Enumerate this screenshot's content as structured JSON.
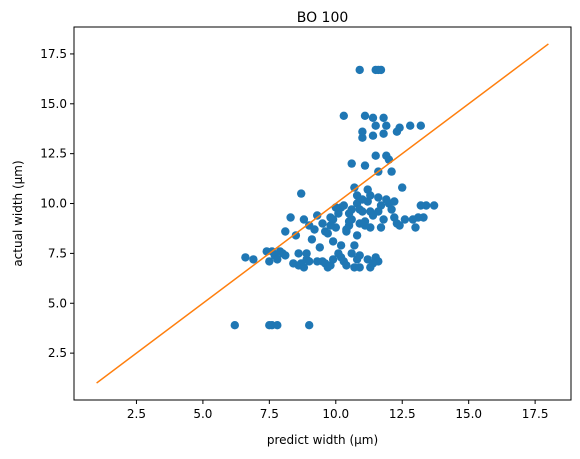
{
  "chart_data": {
    "type": "scatter",
    "title": "BO 100",
    "xlabel": "predict width (μm)",
    "ylabel": "actual width (μm)",
    "xlim": [
      0.15,
      18.85
    ],
    "ylim": [
      0.15,
      18.85
    ],
    "xticks": [
      "2.5",
      "5.0",
      "7.5",
      "10.0",
      "12.5",
      "15.0",
      "17.5"
    ],
    "yticks": [
      "2.5",
      "5.0",
      "7.5",
      "10.0",
      "12.5",
      "15.0",
      "17.5"
    ],
    "xtick_values": [
      2.5,
      5.0,
      7.5,
      10.0,
      12.5,
      15.0,
      17.5
    ],
    "ytick_values": [
      2.5,
      5.0,
      7.5,
      10.0,
      12.5,
      15.0,
      17.5
    ],
    "grid": false,
    "colors": {
      "points": "#1f77b4",
      "line": "#ff7f0e"
    },
    "reference_line": {
      "x": [
        1.0,
        18.0
      ],
      "y": [
        1.0,
        18.0
      ]
    },
    "series": [
      {
        "points": [
          [
            6.2,
            3.9
          ],
          [
            7.5,
            3.9
          ],
          [
            7.6,
            3.9
          ],
          [
            7.8,
            3.9
          ],
          [
            9.0,
            3.9
          ],
          [
            6.6,
            7.3
          ],
          [
            6.9,
            7.2
          ],
          [
            7.4,
            7.6
          ],
          [
            7.6,
            7.6
          ],
          [
            7.7,
            7.4
          ],
          [
            7.8,
            7.2
          ],
          [
            7.5,
            7.1
          ],
          [
            8.0,
            7.5
          ],
          [
            8.1,
            7.4
          ],
          [
            8.1,
            8.6
          ],
          [
            8.3,
            9.3
          ],
          [
            8.5,
            8.4
          ],
          [
            8.6,
            7.5
          ],
          [
            8.6,
            6.9
          ],
          [
            8.7,
            7.0
          ],
          [
            8.8,
            6.8
          ],
          [
            8.9,
            7.2
          ],
          [
            9.0,
            7.1
          ],
          [
            8.7,
            10.5
          ],
          [
            8.8,
            9.2
          ],
          [
            9.0,
            8.9
          ],
          [
            9.1,
            8.2
          ],
          [
            9.2,
            8.7
          ],
          [
            9.3,
            9.4
          ],
          [
            9.4,
            7.8
          ],
          [
            9.5,
            7.1
          ],
          [
            9.6,
            7.0
          ],
          [
            9.7,
            6.8
          ],
          [
            9.8,
            6.9
          ],
          [
            9.9,
            7.2
          ],
          [
            9.5,
            9.0
          ],
          [
            9.7,
            8.5
          ],
          [
            9.8,
            9.3
          ],
          [
            9.9,
            8.1
          ],
          [
            10.0,
            8.8
          ],
          [
            10.1,
            9.5
          ],
          [
            10.1,
            7.5
          ],
          [
            10.2,
            7.3
          ],
          [
            10.3,
            7.1
          ],
          [
            10.4,
            6.9
          ],
          [
            10.2,
            9.8
          ],
          [
            10.3,
            9.9
          ],
          [
            10.4,
            8.6
          ],
          [
            10.5,
            8.9
          ],
          [
            10.6,
            9.2
          ],
          [
            10.7,
            7.9
          ],
          [
            10.7,
            6.8
          ],
          [
            10.8,
            7.2
          ],
          [
            10.9,
            7.4
          ],
          [
            10.8,
            8.4
          ],
          [
            10.9,
            9.0
          ],
          [
            10.3,
            14.4
          ],
          [
            10.6,
            12.0
          ],
          [
            10.7,
            10.8
          ],
          [
            10.8,
            10.0
          ],
          [
            10.9,
            9.7
          ],
          [
            10.9,
            16.7
          ],
          [
            11.0,
            13.3
          ],
          [
            11.0,
            13.6
          ],
          [
            11.1,
            14.4
          ],
          [
            11.1,
            11.9
          ],
          [
            11.2,
            10.7
          ],
          [
            11.2,
            10.1
          ],
          [
            11.3,
            9.6
          ],
          [
            11.3,
            8.8
          ],
          [
            11.4,
            9.4
          ],
          [
            11.4,
            13.4
          ],
          [
            11.4,
            14.3
          ],
          [
            11.5,
            13.9
          ],
          [
            11.5,
            12.4
          ],
          [
            11.6,
            11.6
          ],
          [
            11.6,
            10.3
          ],
          [
            11.7,
            9.9
          ],
          [
            11.8,
            9.2
          ],
          [
            11.5,
            16.7
          ],
          [
            11.6,
            16.7
          ],
          [
            11.7,
            16.7
          ],
          [
            11.5,
            7.3
          ],
          [
            11.6,
            7.1
          ],
          [
            11.3,
            6.8
          ],
          [
            11.2,
            7.2
          ],
          [
            11.8,
            13.5
          ],
          [
            11.8,
            14.3
          ],
          [
            11.9,
            13.9
          ],
          [
            11.9,
            12.4
          ],
          [
            12.0,
            12.2
          ],
          [
            12.0,
            10.0
          ],
          [
            12.1,
            9.7
          ],
          [
            12.2,
            9.3
          ],
          [
            12.3,
            9.0
          ],
          [
            12.1,
            11.6
          ],
          [
            12.3,
            13.6
          ],
          [
            12.4,
            13.8
          ],
          [
            12.5,
            10.8
          ],
          [
            12.6,
            9.2
          ],
          [
            12.8,
            13.9
          ],
          [
            13.0,
            8.8
          ],
          [
            13.1,
            9.3
          ],
          [
            13.2,
            13.9
          ],
          [
            13.3,
            9.3
          ],
          [
            13.4,
            9.9
          ],
          [
            13.2,
            9.9
          ],
          [
            13.7,
            9.9
          ],
          [
            12.9,
            9.2
          ],
          [
            12.4,
            8.9
          ],
          [
            12.2,
            10.1
          ],
          [
            11.9,
            10.2
          ],
          [
            11.0,
            9.6
          ],
          [
            10.5,
            9.1
          ],
          [
            10.0,
            9.8
          ],
          [
            9.9,
            9.2
          ],
          [
            10.6,
            9.7
          ],
          [
            11.1,
            8.9
          ],
          [
            11.7,
            8.8
          ],
          [
            10.4,
            8.7
          ],
          [
            9.6,
            8.6
          ],
          [
            10.2,
            7.9
          ],
          [
            10.9,
            6.8
          ],
          [
            10.6,
            7.5
          ],
          [
            11.4,
            7.0
          ],
          [
            9.3,
            7.1
          ],
          [
            8.9,
            7.5
          ],
          [
            8.4,
            7.0
          ],
          [
            7.9,
            7.6
          ],
          [
            10.8,
            10.4
          ],
          [
            11.0,
            10.2
          ],
          [
            11.3,
            10.4
          ],
          [
            11.6,
            9.6
          ],
          [
            11.1,
            9.1
          ],
          [
            10.5,
            9.5
          ],
          [
            9.8,
            8.9
          ]
        ]
      }
    ]
  }
}
